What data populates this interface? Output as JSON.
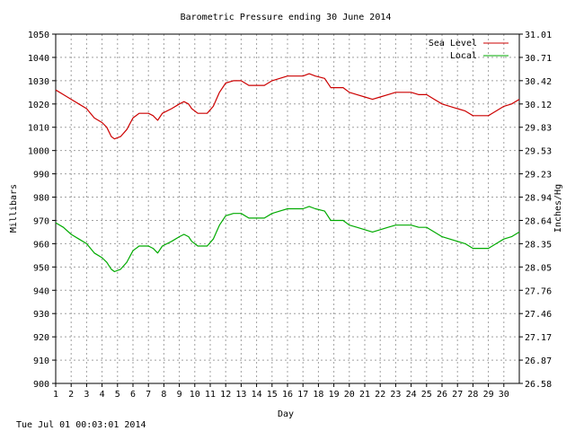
{
  "chart_data": {
    "type": "line",
    "title": "Barometric Pressure ending 30 June 2014",
    "xlabel": "Day",
    "ylabel_left": "Millibars",
    "ylabel_right": "Inches/Hg",
    "footer": "Tue Jul 01 00:03:01 2014",
    "x_ticks": [
      "1",
      "2",
      "3",
      "4",
      "5",
      "6",
      "7",
      "8",
      "9",
      "10",
      "11",
      "12",
      "13",
      "14",
      "15",
      "16",
      "17",
      "18",
      "19",
      "20",
      "21",
      "22",
      "23",
      "24",
      "25",
      "26",
      "27",
      "28",
      "29",
      "30"
    ],
    "xlim": [
      1,
      31
    ],
    "y_left_ticks": [
      "900",
      "910",
      "920",
      "930",
      "940",
      "950",
      "960",
      "970",
      "980",
      "990",
      "1000",
      "1010",
      "1020",
      "1030",
      "1040",
      "1050"
    ],
    "y_right_ticks": [
      "26.58",
      "26.87",
      "27.17",
      "27.46",
      "27.76",
      "28.05",
      "28.35",
      "28.64",
      "28.94",
      "29.23",
      "29.53",
      "29.83",
      "30.12",
      "30.42",
      "30.71",
      "31.01"
    ],
    "ylim": [
      900,
      1050
    ],
    "grid": true,
    "legend_position": "top-right",
    "series": [
      {
        "name": "Sea Level",
        "color": "#cc0000",
        "points": [
          [
            1.0,
            1026
          ],
          [
            1.5,
            1024
          ],
          [
            2.0,
            1022
          ],
          [
            2.5,
            1020
          ],
          [
            3.0,
            1018
          ],
          [
            3.5,
            1014
          ],
          [
            4.0,
            1012
          ],
          [
            4.3,
            1010
          ],
          [
            4.6,
            1006
          ],
          [
            4.8,
            1005
          ],
          [
            5.2,
            1006
          ],
          [
            5.6,
            1009
          ],
          [
            6.0,
            1014
          ],
          [
            6.4,
            1016
          ],
          [
            7.0,
            1016
          ],
          [
            7.3,
            1015
          ],
          [
            7.6,
            1013
          ],
          [
            7.9,
            1016
          ],
          [
            8.5,
            1018
          ],
          [
            9.0,
            1020
          ],
          [
            9.3,
            1021
          ],
          [
            9.6,
            1020
          ],
          [
            9.8,
            1018
          ],
          [
            10.2,
            1016
          ],
          [
            10.8,
            1016
          ],
          [
            11.2,
            1019
          ],
          [
            11.6,
            1025
          ],
          [
            12.0,
            1029
          ],
          [
            12.5,
            1030
          ],
          [
            13.0,
            1030
          ],
          [
            13.5,
            1028
          ],
          [
            14.0,
            1028
          ],
          [
            14.5,
            1028
          ],
          [
            15.0,
            1030
          ],
          [
            15.5,
            1031
          ],
          [
            16.0,
            1032
          ],
          [
            16.5,
            1032
          ],
          [
            17.0,
            1032
          ],
          [
            17.4,
            1033
          ],
          [
            17.8,
            1032
          ],
          [
            18.4,
            1031
          ],
          [
            18.8,
            1027
          ],
          [
            19.2,
            1027
          ],
          [
            19.6,
            1027
          ],
          [
            20.0,
            1025
          ],
          [
            20.5,
            1024
          ],
          [
            21.0,
            1023
          ],
          [
            21.5,
            1022
          ],
          [
            22.0,
            1023
          ],
          [
            22.5,
            1024
          ],
          [
            23.0,
            1025
          ],
          [
            23.5,
            1025
          ],
          [
            24.0,
            1025
          ],
          [
            24.5,
            1024
          ],
          [
            25.0,
            1024
          ],
          [
            25.5,
            1022
          ],
          [
            26.0,
            1020
          ],
          [
            26.5,
            1019
          ],
          [
            27.0,
            1018
          ],
          [
            27.5,
            1017
          ],
          [
            28.0,
            1015
          ],
          [
            28.5,
            1015
          ],
          [
            29.0,
            1015
          ],
          [
            29.5,
            1017
          ],
          [
            30.0,
            1019
          ],
          [
            30.5,
            1020
          ],
          [
            31.0,
            1022
          ]
        ]
      },
      {
        "name": "Local",
        "color": "#00aa00",
        "points": [
          [
            1.0,
            969
          ],
          [
            1.5,
            967
          ],
          [
            2.0,
            964
          ],
          [
            2.5,
            962
          ],
          [
            3.0,
            960
          ],
          [
            3.5,
            956
          ],
          [
            4.0,
            954
          ],
          [
            4.3,
            952
          ],
          [
            4.6,
            949
          ],
          [
            4.8,
            948
          ],
          [
            5.2,
            949
          ],
          [
            5.6,
            952
          ],
          [
            6.0,
            957
          ],
          [
            6.4,
            959
          ],
          [
            7.0,
            959
          ],
          [
            7.3,
            958
          ],
          [
            7.6,
            956
          ],
          [
            7.9,
            959
          ],
          [
            8.5,
            961
          ],
          [
            9.0,
            963
          ],
          [
            9.3,
            964
          ],
          [
            9.6,
            963
          ],
          [
            9.8,
            961
          ],
          [
            10.2,
            959
          ],
          [
            10.8,
            959
          ],
          [
            11.2,
            962
          ],
          [
            11.6,
            968
          ],
          [
            12.0,
            972
          ],
          [
            12.5,
            973
          ],
          [
            13.0,
            973
          ],
          [
            13.5,
            971
          ],
          [
            14.0,
            971
          ],
          [
            14.5,
            971
          ],
          [
            15.0,
            973
          ],
          [
            15.5,
            974
          ],
          [
            16.0,
            975
          ],
          [
            16.5,
            975
          ],
          [
            17.0,
            975
          ],
          [
            17.4,
            976
          ],
          [
            17.8,
            975
          ],
          [
            18.4,
            974
          ],
          [
            18.8,
            970
          ],
          [
            19.2,
            970
          ],
          [
            19.6,
            970
          ],
          [
            20.0,
            968
          ],
          [
            20.5,
            967
          ],
          [
            21.0,
            966
          ],
          [
            21.5,
            965
          ],
          [
            22.0,
            966
          ],
          [
            22.5,
            967
          ],
          [
            23.0,
            968
          ],
          [
            23.5,
            968
          ],
          [
            24.0,
            968
          ],
          [
            24.5,
            967
          ],
          [
            25.0,
            967
          ],
          [
            25.5,
            965
          ],
          [
            26.0,
            963
          ],
          [
            26.5,
            962
          ],
          [
            27.0,
            961
          ],
          [
            27.5,
            960
          ],
          [
            28.0,
            958
          ],
          [
            28.5,
            958
          ],
          [
            29.0,
            958
          ],
          [
            29.5,
            960
          ],
          [
            30.0,
            962
          ],
          [
            30.5,
            963
          ],
          [
            31.0,
            965
          ]
        ]
      }
    ]
  }
}
